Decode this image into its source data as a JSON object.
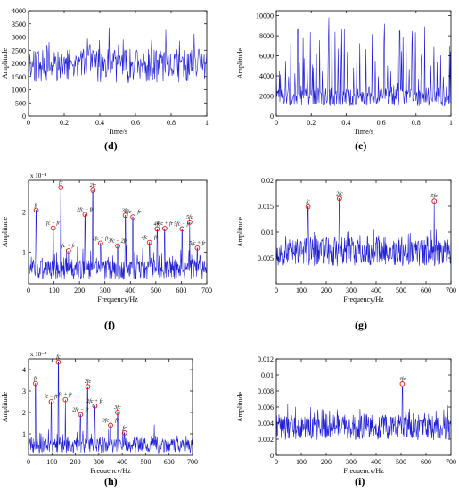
{
  "chart_data": [
    {
      "id": "d",
      "panel_label": "(d)",
      "type": "line",
      "xlabel": "Time/s",
      "ylabel": "Amplitude",
      "xlim": [
        0,
        1
      ],
      "ylim": [
        0,
        4000
      ],
      "xticks": [
        0,
        0.2,
        0.4,
        0.6,
        0.8,
        1
      ],
      "xticklabels": [
        "0",
        "0.2",
        "0.4",
        "0.6",
        "0.8",
        "1"
      ],
      "yticks": [
        0,
        500,
        1000,
        1500,
        2000,
        2500,
        3000,
        3500,
        4000
      ],
      "yticklabels": [
        "0",
        "500",
        "1000",
        "1500",
        "2000",
        "2500",
        "3000",
        "3500",
        "4000"
      ],
      "exponent": "",
      "signal": {
        "n": 340,
        "base": 1900,
        "noise": 650,
        "min": 200,
        "max": 4000,
        "spikeEvery": 9,
        "spike": 900,
        "color": "#1f1fd6",
        "seed": 11
      },
      "series": [
        {
          "values": [
            1900,
            1750,
            2600,
            1400,
            3300,
            1950,
            2100,
            1500,
            2400,
            1800
          ]
        }
      ],
      "peaks": []
    },
    {
      "id": "e",
      "panel_label": "(e)",
      "type": "line",
      "xlabel": "Time/s",
      "ylabel": "Amplitude",
      "xlim": [
        0,
        1
      ],
      "ylim": [
        0,
        10500
      ],
      "xticks": [
        0,
        0.2,
        0.4,
        0.6,
        0.8,
        1
      ],
      "xticklabels": [
        "0",
        "0.2",
        "0.4",
        "0.6",
        "0.8",
        "1"
      ],
      "yticks": [
        0,
        2000,
        4000,
        6000,
        8000,
        10000
      ],
      "yticklabels": [
        "0",
        "2000",
        "4000",
        "6000",
        "8000",
        "10000"
      ],
      "exponent": "",
      "signal": {
        "n": 340,
        "base": 1900,
        "noise": 900,
        "min": 150,
        "max": 10500,
        "spikeEvery": 6,
        "spike": 8000,
        "color": "#1f1fd6",
        "seed": 23
      },
      "series": [
        {
          "values": [
            1900,
            2500,
            1200,
            10200,
            1800,
            3100,
            900,
            9800,
            2200,
            1600
          ]
        }
      ],
      "peaks": []
    },
    {
      "id": "f",
      "panel_label": "(f)",
      "type": "line",
      "xlabel": "Frequency/Hz",
      "ylabel": "Amplitude",
      "xlim": [
        0,
        700
      ],
      "ylim": [
        0.2,
        2.8
      ],
      "xticks": [
        0,
        100,
        200,
        300,
        400,
        500,
        600,
        700
      ],
      "xticklabels": [
        "0",
        "100",
        "200",
        "300",
        "400",
        "500",
        "600",
        "700"
      ],
      "yticks": [
        1,
        2
      ],
      "yticklabels": [
        "1",
        "2"
      ],
      "exponent": "x 10⁻⁴",
      "signal": {
        "n": 460,
        "base": 0.55,
        "noise": 0.25,
        "min": 0.3,
        "max": 2.7,
        "spikeEvery": 7,
        "spike": 0.45,
        "color": "#1f1fd6",
        "seed": 37
      },
      "series": [
        {
          "values": [
            0.6,
            0.5,
            0.8,
            0.55,
            0.7,
            0.45,
            0.6,
            0.5
          ]
        }
      ],
      "peaks": [
        {
          "x": 30,
          "y": 2.05,
          "label": "fr"
        },
        {
          "x": 97,
          "y": 1.6,
          "label": "fc − fr"
        },
        {
          "x": 127,
          "y": 2.62,
          "label": "fc"
        },
        {
          "x": 157,
          "y": 1.03,
          "label": "fc + fr"
        },
        {
          "x": 222,
          "y": 1.94,
          "label": "2fc − fr"
        },
        {
          "x": 253,
          "y": 2.55,
          "label": "2fc"
        },
        {
          "x": 283,
          "y": 1.22,
          "label": "2fc + fr"
        },
        {
          "x": 350,
          "y": 1.15,
          "label": "3fc − 2fr"
        },
        {
          "x": 380,
          "y": 1.92,
          "label": "3fc"
        },
        {
          "x": 410,
          "y": 1.88,
          "label": "3fc − fr"
        },
        {
          "x": 475,
          "y": 1.24,
          "label": "4fc − fr"
        },
        {
          "x": 505,
          "y": 1.58,
          "label": "4fc"
        },
        {
          "x": 535,
          "y": 1.59,
          "label": "4fc + fr"
        },
        {
          "x": 603,
          "y": 1.58,
          "label": "5fc − fr"
        },
        {
          "x": 633,
          "y": 1.75,
          "label": "5fc"
        },
        {
          "x": 663,
          "y": 1.1,
          "label": "5fc + fr"
        }
      ]
    },
    {
      "id": "g",
      "panel_label": "(g)",
      "type": "line",
      "xlabel": "Frequency/Hz",
      "ylabel": "Amplitude",
      "xlim": [
        0,
        700
      ],
      "ylim": [
        0,
        0.02
      ],
      "xticks": [
        0,
        100,
        200,
        300,
        400,
        500,
        600,
        700
      ],
      "xticklabels": [
        "0",
        "100",
        "200",
        "300",
        "400",
        "500",
        "600",
        "700"
      ],
      "yticks": [
        0.005,
        0.01,
        0.015,
        0.02
      ],
      "yticklabels": [
        "0.005",
        "0.01",
        "0.015",
        "0.02"
      ],
      "exponent": "",
      "signal": {
        "n": 460,
        "base": 0.0062,
        "noise": 0.0028,
        "min": 0.0015,
        "max": 0.0165,
        "spikeEvery": 11,
        "spike": 0.003,
        "color": "#1f1fd6",
        "seed": 53
      },
      "series": [
        {
          "values": [
            0.006,
            0.007,
            0.005,
            0.009,
            0.006,
            0.0075,
            0.0055
          ]
        }
      ],
      "peaks": [
        {
          "x": 127,
          "y": 0.0149,
          "label": "fc"
        },
        {
          "x": 253,
          "y": 0.0165,
          "label": "2fc"
        },
        {
          "x": 633,
          "y": 0.016,
          "label": "5fc"
        }
      ]
    },
    {
      "id": "h",
      "panel_label": "(h)",
      "type": "line",
      "xlabel": "Frequency/Hz",
      "ylabel": "Amplitude",
      "xlim": [
        0,
        700
      ],
      "ylim": [
        0,
        4.5
      ],
      "xticks": [
        0,
        100,
        200,
        300,
        400,
        500,
        600,
        700
      ],
      "xticklabels": [
        "0",
        "100",
        "200",
        "300",
        "400",
        "500",
        "600",
        "700"
      ],
      "yticks": [
        1,
        2,
        3,
        4
      ],
      "yticklabels": [
        "1",
        "2",
        "3",
        "4"
      ],
      "exponent": "x 10⁻⁴",
      "signal": {
        "n": 460,
        "base": 0.45,
        "noise": 0.35,
        "min": 0.05,
        "max": 4.4,
        "spikeEvery": 8,
        "spike": 0.6,
        "color": "#1f1fd6",
        "seed": 71
      },
      "series": [
        {
          "values": [
            0.5,
            0.4,
            0.8,
            0.3,
            0.6,
            0.45,
            0.7
          ]
        }
      ],
      "peaks": [
        {
          "x": 30,
          "y": 3.35,
          "label": "fr"
        },
        {
          "x": 97,
          "y": 2.5,
          "label": "fc − fr"
        },
        {
          "x": 127,
          "y": 4.35,
          "label": "fc"
        },
        {
          "x": 157,
          "y": 2.6,
          "label": "fc + fr"
        },
        {
          "x": 222,
          "y": 1.9,
          "label": "2fc − fr"
        },
        {
          "x": 253,
          "y": 3.2,
          "label": "2fc"
        },
        {
          "x": 283,
          "y": 2.3,
          "label": "2fc + fr"
        },
        {
          "x": 350,
          "y": 1.4,
          "label": "3fc − fr"
        },
        {
          "x": 380,
          "y": 2.0,
          "label": "3fc"
        },
        {
          "x": 410,
          "y": 1.05,
          "label": "fc"
        }
      ]
    },
    {
      "id": "i",
      "panel_label": "(i)",
      "type": "line",
      "xlabel": "Frequency/Hz",
      "ylabel": "Amplitude",
      "xlim": [
        0,
        700
      ],
      "ylim": [
        0,
        0.012
      ],
      "xticks": [
        0,
        100,
        200,
        300,
        400,
        500,
        600,
        700
      ],
      "xticklabels": [
        "0",
        "100",
        "200",
        "300",
        "400",
        "500",
        "600",
        "700"
      ],
      "yticks": [
        0,
        0.002,
        0.004,
        0.006,
        0.008,
        0.01,
        0.012
      ],
      "yticklabels": [
        "0",
        "0.002",
        "0.004",
        "0.006",
        "0.008",
        "0.01",
        "0.012"
      ],
      "exponent": "",
      "signal": {
        "n": 460,
        "base": 0.0035,
        "noise": 0.0016,
        "min": 0.0005,
        "max": 0.0085,
        "spikeEvery": 10,
        "spike": 0.0018,
        "color": "#1f1fd6",
        "seed": 89
      },
      "series": [
        {
          "values": [
            0.003,
            0.0042,
            0.0028,
            0.0055,
            0.0033,
            0.0038
          ]
        }
      ],
      "peaks": [
        {
          "x": 505,
          "y": 0.0089,
          "label": "4fc"
        }
      ]
    }
  ]
}
